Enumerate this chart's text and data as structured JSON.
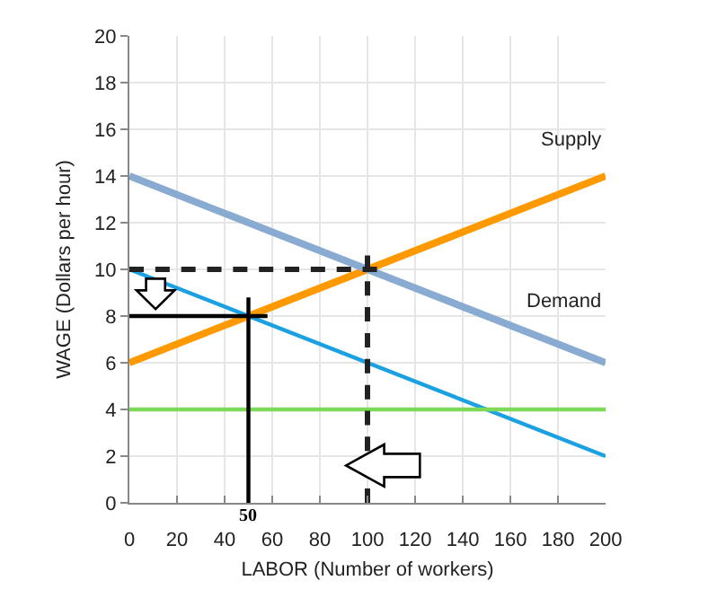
{
  "chart_data": {
    "type": "line",
    "xlabel": "LABOR (Number of workers)",
    "ylabel": "WAGE (Dollars per hour)",
    "xlim": [
      0,
      200
    ],
    "xticks": [
      0,
      20,
      40,
      60,
      80,
      100,
      120,
      140,
      160,
      180,
      200
    ],
    "ylim": [
      0,
      20
    ],
    "yticks": [
      0,
      2,
      4,
      6,
      8,
      10,
      12,
      14,
      16,
      18,
      20
    ],
    "grid": true,
    "legend": false,
    "marker": "none",
    "series": [
      {
        "name": "Supply",
        "color": "#ff9900",
        "x": [
          0,
          200
        ],
        "values": [
          6,
          14
        ]
      },
      {
        "name": "Demand",
        "color": "#8aabd1",
        "x": [
          0,
          200
        ],
        "values": [
          14,
          6
        ]
      },
      {
        "color": "#1ba1e2",
        "x": [
          0,
          200
        ],
        "values": [
          10,
          2
        ]
      },
      {
        "color": "#7ed957",
        "x": [
          0,
          200
        ],
        "values": [
          4,
          4
        ]
      },
      {
        "color": "#222222",
        "line_style": "dashed",
        "x": [
          0,
          104
        ],
        "values": [
          10,
          10
        ]
      },
      {
        "color": "#222222",
        "line_style": "dashed",
        "x": [
          100,
          100
        ],
        "values": [
          0,
          10.6
        ]
      },
      {
        "color": "#000000",
        "x": [
          0,
          58
        ],
        "values": [
          8,
          8
        ]
      },
      {
        "color": "#000000",
        "x": [
          50,
          50
        ],
        "values": [
          0,
          8.8
        ]
      }
    ],
    "annotations": [
      {
        "text": "50",
        "x": 50,
        "y": 0
      }
    ]
  }
}
